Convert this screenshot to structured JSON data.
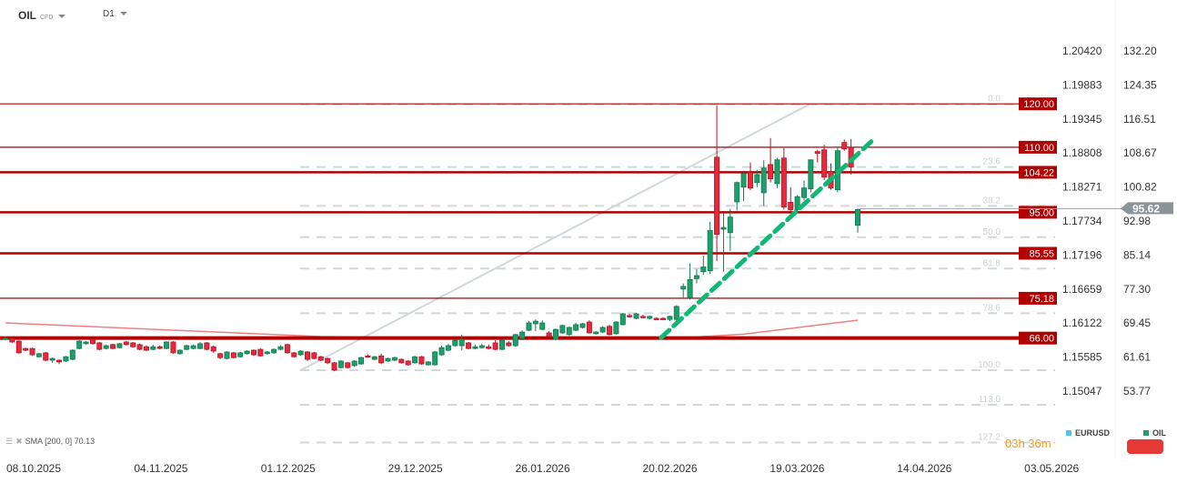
{
  "header": {
    "symbol": "OIL",
    "symbol_type": "CFD",
    "timeframe": "D1"
  },
  "indicator": {
    "label": "SMA [200, 0] 70.13"
  },
  "countdown": "03h 36m",
  "legend": [
    {
      "name": "EURUSD",
      "color": "#4fc3f7"
    },
    {
      "name": "OIL",
      "color": "#1e9e6a"
    }
  ],
  "colors": {
    "up": "#1e9e6a",
    "down": "#e8283c",
    "level": "#b00000",
    "fib": "#d0d7dd",
    "trend": "#0fb873",
    "sma": "#f08080",
    "price_tag": "#8a9398"
  },
  "chart_data": {
    "type": "candlestick",
    "ylim": [
      53.77,
      132.2
    ],
    "y_ticks_right": [
      "132.20",
      "124.35",
      "116.51",
      "108.67",
      "100.82",
      "92.98",
      "85.14",
      "77.30",
      "69.45",
      "61.61",
      "53.77"
    ],
    "y_ticks_left": [
      "1.20420",
      "1.19883",
      "1.19345",
      "1.18808",
      "1.18271",
      "1.17734",
      "1.17196",
      "1.16659",
      "1.16122",
      "1.15585",
      "1.15047"
    ],
    "x_ticks": [
      "08.10.2025",
      "04.11.2025",
      "01.12.2025",
      "29.12.2025",
      "26.01.2026",
      "20.02.2026",
      "19.03.2026",
      "14.04.2026",
      "03.05.2026"
    ],
    "current_price": "95.62",
    "ohlc": [
      [
        65.8,
        66.3,
        65.5,
        66.0
      ],
      [
        65.9,
        66.1,
        64.9,
        65.1
      ],
      [
        65.3,
        65.5,
        62.4,
        62.6
      ],
      [
        63.6,
        63.8,
        63.0,
        63.2
      ],
      [
        63.6,
        63.8,
        61.9,
        62.15
      ],
      [
        61.7,
        62.6,
        61.5,
        62.4
      ],
      [
        62.6,
        62.8,
        60.7,
        60.9
      ],
      [
        60.9,
        61.5,
        60.3,
        61.3
      ],
      [
        60.9,
        61.1,
        60.0,
        60.5
      ],
      [
        60.7,
        61.9,
        60.5,
        61.7
      ],
      [
        61.1,
        63.4,
        60.9,
        63.2
      ],
      [
        63.6,
        65.5,
        63.4,
        65.3
      ],
      [
        64.7,
        65.3,
        64.5,
        65.1
      ],
      [
        65.7,
        65.9,
        64.5,
        64.7
      ],
      [
        64.9,
        65.1,
        63.2,
        63.4
      ],
      [
        63.6,
        64.5,
        63.4,
        64.25
      ],
      [
        64.5,
        64.7,
        63.4,
        63.6
      ],
      [
        63.8,
        64.9,
        63.6,
        64.7
      ],
      [
        65.1,
        65.3,
        64.3,
        64.5
      ],
      [
        64.9,
        65.1,
        63.8,
        64.0
      ],
      [
        64.5,
        64.7,
        63.2,
        63.4
      ],
      [
        64.0,
        64.3,
        63.0,
        63.2
      ],
      [
        63.4,
        64.5,
        63.2,
        64.0
      ],
      [
        64.0,
        64.3,
        63.4,
        63.6
      ],
      [
        63.6,
        65.3,
        63.4,
        65.1
      ],
      [
        65.1,
        65.3,
        62.4,
        62.6
      ],
      [
        62.4,
        63.4,
        62.2,
        63.2
      ],
      [
        63.4,
        64.5,
        63.2,
        64.25
      ],
      [
        63.6,
        64.5,
        63.4,
        64.25
      ],
      [
        63.6,
        65.1,
        63.4,
        64.7
      ],
      [
        64.9,
        65.1,
        63.2,
        63.4
      ],
      [
        64.0,
        64.3,
        62.6,
        63.0
      ],
      [
        62.4,
        62.6,
        61.1,
        61.5
      ],
      [
        61.3,
        63.0,
        61.1,
        62.8
      ],
      [
        62.6,
        62.8,
        61.3,
        61.5
      ],
      [
        61.7,
        62.8,
        61.5,
        62.6
      ],
      [
        62.4,
        63.2,
        62.2,
        63.0
      ],
      [
        63.2,
        63.4,
        61.9,
        62.15
      ],
      [
        63.4,
        63.6,
        61.7,
        61.9
      ],
      [
        62.4,
        63.0,
        62.2,
        62.8
      ],
      [
        62.6,
        63.6,
        62.4,
        63.4
      ],
      [
        63.4,
        64.3,
        63.2,
        64.0
      ],
      [
        64.5,
        64.7,
        62.4,
        62.6
      ],
      [
        62.6,
        62.8,
        61.5,
        61.7
      ],
      [
        62.15,
        63.2,
        61.9,
        63.0
      ],
      [
        62.8,
        63.0,
        60.7,
        61.1
      ],
      [
        62.6,
        62.8,
        61.1,
        61.3
      ],
      [
        61.7,
        61.9,
        60.7,
        60.9
      ],
      [
        61.3,
        61.5,
        60.0,
        60.3
      ],
      [
        60.3,
        60.5,
        58.4,
        58.6
      ],
      [
        59.2,
        60.9,
        59.0,
        60.7
      ],
      [
        60.3,
        60.5,
        59.0,
        59.2
      ],
      [
        59.65,
        60.9,
        59.4,
        60.7
      ],
      [
        60.05,
        61.7,
        59.85,
        61.5
      ],
      [
        61.9,
        62.2,
        61.5,
        61.7
      ],
      [
        61.1,
        61.9,
        60.9,
        61.7
      ],
      [
        61.9,
        62.4,
        60.0,
        60.3
      ],
      [
        60.7,
        61.5,
        60.5,
        61.3
      ],
      [
        60.9,
        61.7,
        60.7,
        61.5
      ],
      [
        61.1,
        61.3,
        60.1,
        60.3
      ],
      [
        60.7,
        60.9,
        59.65,
        59.85
      ],
      [
        60.3,
        61.9,
        60.1,
        61.7
      ],
      [
        61.7,
        61.9,
        59.85,
        60.05
      ],
      [
        59.85,
        60.7,
        59.65,
        60.5
      ],
      [
        59.85,
        63.0,
        59.65,
        62.8
      ],
      [
        62.15,
        64.25,
        61.9,
        63.8
      ],
      [
        63.2,
        64.7,
        63.0,
        64.25
      ],
      [
        64.25,
        65.7,
        64.0,
        65.5
      ],
      [
        64.25,
        66.8,
        63.2,
        65.7
      ],
      [
        64.9,
        65.1,
        63.4,
        63.6
      ],
      [
        63.6,
        64.5,
        63.4,
        64.0
      ],
      [
        63.8,
        64.7,
        63.6,
        64.25
      ],
      [
        64.0,
        64.5,
        63.4,
        63.6
      ],
      [
        64.9,
        65.5,
        63.2,
        63.4
      ],
      [
        63.4,
        65.7,
        63.2,
        65.5
      ],
      [
        64.9,
        65.3,
        64.0,
        64.25
      ],
      [
        64.25,
        67.0,
        64.0,
        66.8
      ],
      [
        65.9,
        67.8,
        65.5,
        67.4
      ],
      [
        67.8,
        69.9,
        67.6,
        69.5
      ],
      [
        69.3,
        70.3,
        67.6,
        69.9
      ],
      [
        68.0,
        70.1,
        67.8,
        69.5
      ],
      [
        67.2,
        67.6,
        66.1,
        66.35
      ],
      [
        65.7,
        68.2,
        65.5,
        68.0
      ],
      [
        67.2,
        69.1,
        67.0,
        68.9
      ],
      [
        66.8,
        68.7,
        66.6,
        68.45
      ],
      [
        67.8,
        69.5,
        67.6,
        69.1
      ],
      [
        68.45,
        69.5,
        68.2,
        69.3
      ],
      [
        69.7,
        70.1,
        67.0,
        67.2
      ],
      [
        67.0,
        67.6,
        66.8,
        67.4
      ],
      [
        67.4,
        68.7,
        67.2,
        68.45
      ],
      [
        68.7,
        69.1,
        66.6,
        66.8
      ],
      [
        67.0,
        69.9,
        66.8,
        69.7
      ],
      [
        69.1,
        71.8,
        68.9,
        71.6
      ],
      [
        71.2,
        71.6,
        70.8,
        71.0
      ],
      [
        70.55,
        71.8,
        70.3,
        71.6
      ],
      [
        71.0,
        71.4,
        70.6,
        70.8
      ],
      [
        70.55,
        71.2,
        70.3,
        71.0
      ],
      [
        70.55,
        70.8,
        70.1,
        70.3
      ],
      [
        70.55,
        70.8,
        70.1,
        70.3
      ],
      [
        70.3,
        71.2,
        69.9,
        71.0
      ],
      [
        70.3,
        73.6,
        69.9,
        73.3
      ],
      [
        77.3,
        78.6,
        75.3,
        77.9
      ],
      [
        75.3,
        83.2,
        74.9,
        79.5
      ],
      [
        79.7,
        81.9,
        78.6,
        80.4
      ],
      [
        81.3,
        85.0,
        80.6,
        82.4
      ],
      [
        81.5,
        92.8,
        80.8,
        90.8
      ],
      [
        107.7,
        119.6,
        83.8,
        89.9
      ],
      [
        91.1,
        94.9,
        81.3,
        91.5
      ],
      [
        90.3,
        95.8,
        86.1,
        93.9
      ],
      [
        97.4,
        102.1,
        95.4,
        101.85
      ],
      [
        100.8,
        104.2,
        97.6,
        103.95
      ],
      [
        104.2,
        106.5,
        100.1,
        100.6
      ],
      [
        101.85,
        104.8,
        100.8,
        103.7
      ],
      [
        99.5,
        107.0,
        96.5,
        105.2
      ],
      [
        106.0,
        112.1,
        101.9,
        102.7
      ],
      [
        101.6,
        107.5,
        100.6,
        107.1
      ],
      [
        107.5,
        109.8,
        95.6,
        96.2
      ],
      [
        97.3,
        100.8,
        93.9,
        95.6
      ],
      [
        95.6,
        99.0,
        94.9,
        98.6
      ],
      [
        98.4,
        102.3,
        97.7,
        100.6
      ],
      [
        100.4,
        107.1,
        99.6,
        107.1
      ],
      [
        109.0,
        109.4,
        106.5,
        108.6
      ],
      [
        109.4,
        110.6,
        102.4,
        103.1
      ],
      [
        104.4,
        106.3,
        100.2,
        100.6
      ],
      [
        100.2,
        110.0,
        99.6,
        109.2
      ],
      [
        111.1,
        111.8,
        109.2,
        109.6
      ],
      [
        110.0,
        111.9,
        103.7,
        105.4
      ],
      [
        92.0,
        95.9,
        90.3,
        95.62
      ]
    ],
    "sma_200": [
      [
        0,
        69.5
      ],
      [
        47,
        66.35
      ],
      [
        80,
        65.9
      ],
      [
        100,
        66.0
      ],
      [
        110,
        66.9
      ],
      [
        127,
        70.13
      ]
    ],
    "levels": [
      "120.00",
      "110.00",
      "104.22",
      "95.00",
      "85.55",
      "75.18",
      "66.00"
    ],
    "fibonacci": {
      "high": 119.9,
      "low": 58.6,
      "levels": [
        "0.0",
        "23.6",
        "38.2",
        "50.0",
        "61.8",
        "78.6",
        "100.0",
        "113.0",
        "127.2"
      ]
    },
    "trendline": [
      [
        97.7,
        66.1
      ],
      [
        129,
        111.3
      ]
    ],
    "fib_anchor_line": [
      [
        44,
        58.6
      ],
      [
        119.8,
        119.9
      ]
    ]
  }
}
